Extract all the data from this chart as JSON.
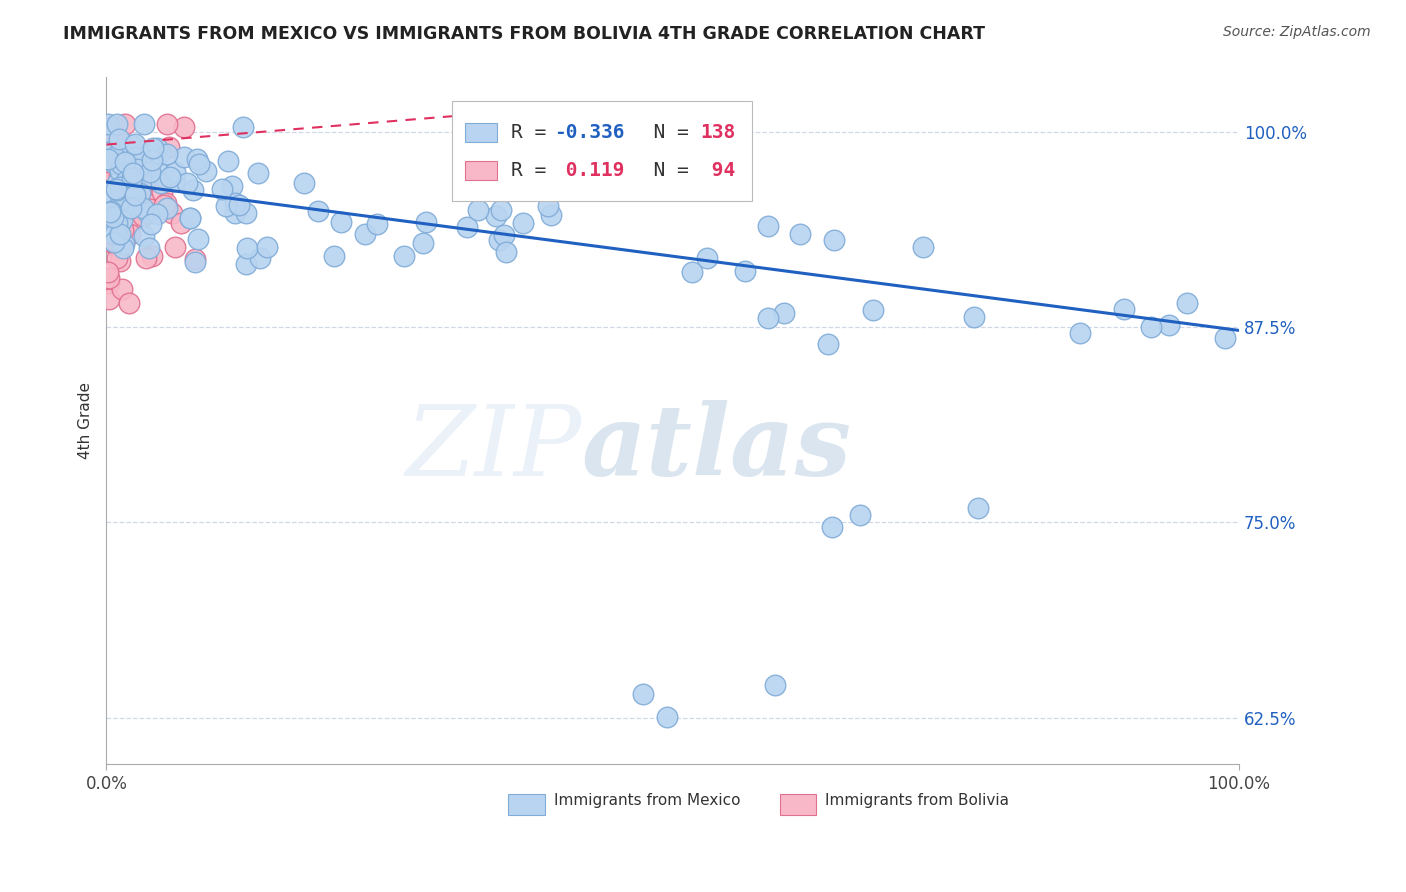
{
  "title": "IMMIGRANTS FROM MEXICO VS IMMIGRANTS FROM BOLIVIA 4TH GRADE CORRELATION CHART",
  "source_text": "Source: ZipAtlas.com",
  "ylabel": "4th Grade",
  "legend": {
    "mexico": {
      "label": "Immigrants from Mexico",
      "color": "#b8d4f0",
      "R": -0.336,
      "N": 138
    },
    "bolivia": {
      "label": "Immigrants from Bolivia",
      "color": "#f8b8c8",
      "R": 0.119,
      "N": 94
    }
  },
  "ytick_labels": [
    "62.5%",
    "75.0%",
    "87.5%",
    "100.0%"
  ],
  "ytick_values": [
    0.625,
    0.75,
    0.875,
    1.0
  ],
  "xlim": [
    0.0,
    1.0
  ],
  "ylim": [
    0.595,
    1.035
  ],
  "scatter_color_mexico": "#b8d4f0",
  "scatter_edge_mexico": "#80acd8",
  "scatter_color_bolivia": "#f8b8c8",
  "scatter_edge_bolivia": "#e07090",
  "line_color_mexico": "#2060c0",
  "line_color_bolivia": "#e03060",
  "legend_R_color_mexico": "#2060c0",
  "legend_R_color_bolivia": "#e03060",
  "legend_N_color_mexico": "#e03060",
  "legend_N_color_bolivia": "#e03060",
  "background_color": "#ffffff",
  "grid_color": "#d0d8e8",
  "title_color": "#222222",
  "yaxis_label_color": "#2060c0",
  "source_color": "#555555",
  "mex_line_y0": 0.968,
  "mex_line_y1": 0.873,
  "bol_line_y0": 0.992,
  "bol_line_y1": 1.01
}
